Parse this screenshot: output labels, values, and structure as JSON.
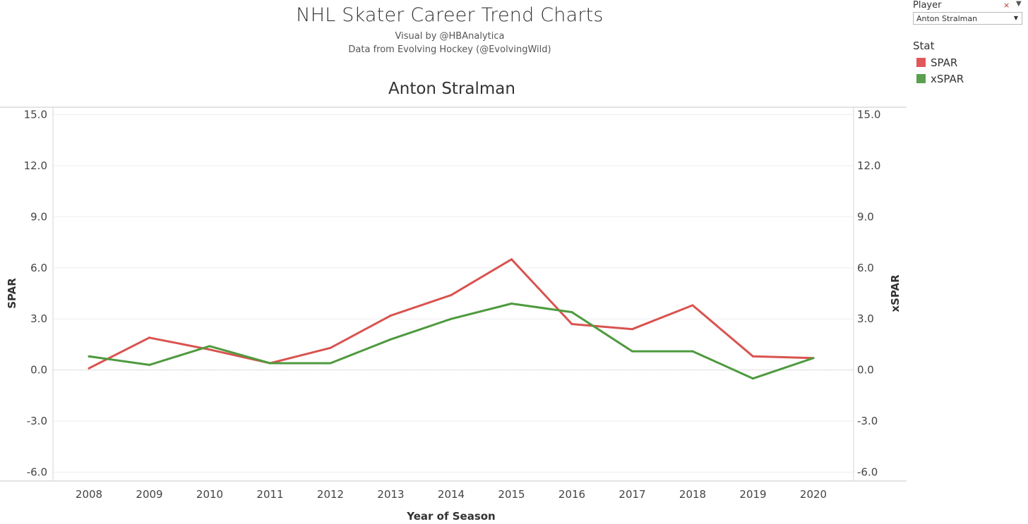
{
  "header": {
    "title": "NHL Skater Career Trend Charts",
    "subtitle_1": "Visual by @HBAnalytica",
    "subtitle_2": "Data from Evolving Hockey (@EvolvingWild)"
  },
  "filter": {
    "label": "Player",
    "selected": "Anton Stralman",
    "icons": [
      "filter-clear-icon",
      "menu-arrow-icon",
      "chevron-down-icon"
    ]
  },
  "legend": {
    "title": "Stat",
    "items": [
      {
        "label": "SPAR",
        "color": "#e15759"
      },
      {
        "label": "xSPAR",
        "color": "#59a14f"
      }
    ]
  },
  "chart_data": {
    "type": "line",
    "title": "Anton Stralman",
    "xlabel": "Year of Season",
    "ylabel_left": "SPAR",
    "ylabel_right": "xSPAR",
    "categories": [
      "2008",
      "2009",
      "2010",
      "2011",
      "2012",
      "2013",
      "2014",
      "2015",
      "2016",
      "2017",
      "2018",
      "2019",
      "2020"
    ],
    "ylim": [
      -6.5,
      15.5
    ],
    "yticks": [
      -6.0,
      -3.0,
      0.0,
      3.0,
      6.0,
      9.0,
      12.0,
      15.0
    ],
    "ytick_labels": [
      "-6.0",
      "-3.0",
      "0.0",
      "3.0",
      "6.0",
      "9.0",
      "12.0",
      "15.0"
    ],
    "grid": true,
    "legend_position": "right",
    "series": [
      {
        "name": "SPAR",
        "color": "#d9534f",
        "values": [
          0.1,
          1.9,
          1.2,
          0.4,
          1.3,
          3.2,
          4.4,
          6.5,
          2.7,
          2.4,
          3.8,
          0.8,
          0.7
        ]
      },
      {
        "name": "xSPAR",
        "color": "#4e9a3e",
        "values": [
          0.8,
          0.3,
          1.4,
          0.4,
          0.4,
          1.8,
          3.0,
          3.9,
          3.4,
          1.1,
          1.1,
          -0.5,
          0.7
        ]
      }
    ]
  }
}
